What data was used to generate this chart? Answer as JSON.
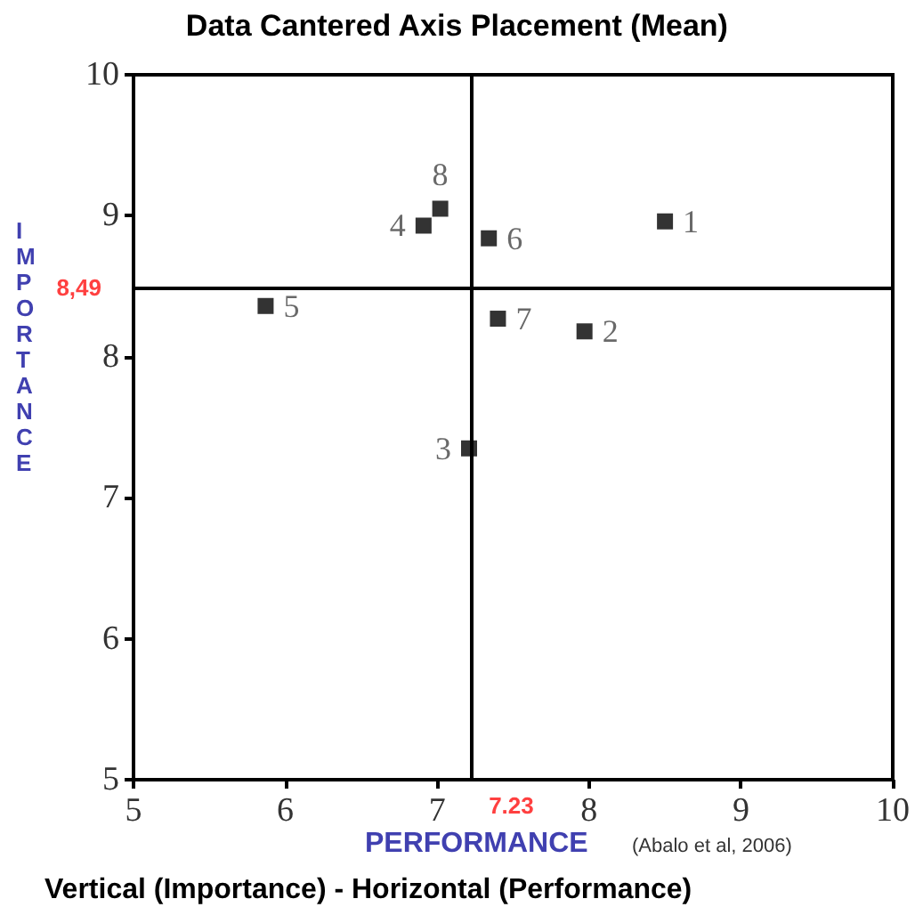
{
  "chart_data": {
    "type": "scatter",
    "title": "Data Cantered Axis Placement (Mean)",
    "xlabel": "PERFORMANCE",
    "ylabel": "IMPORTANCE",
    "x": [
      8.5,
      7.97,
      7.21,
      6.91,
      5.87,
      7.34,
      7.4,
      7.02
    ],
    "values": [
      8.96,
      8.18,
      7.35,
      8.93,
      8.36,
      8.84,
      8.27,
      9.05
    ],
    "color": "#000000",
    "marker": "square",
    "xlim": [
      5,
      10
    ],
    "xticks": [
      5,
      6,
      7,
      8,
      9,
      10
    ],
    "ylim": [
      5,
      10
    ],
    "yticks": [
      5,
      6,
      7,
      8,
      9,
      10
    ],
    "grid": false,
    "ref_lines": [
      {
        "axis": "x",
        "value": 7.23,
        "label": "7.23",
        "color": "#000000"
      },
      {
        "axis": "y",
        "value": 8.49,
        "label": "8,49",
        "color": "#000000"
      }
    ],
    "annotations": [
      {
        "text": "1",
        "x": 8.5,
        "y": 8.96
      },
      {
        "text": "2",
        "x": 7.97,
        "y": 8.18
      },
      {
        "text": "3",
        "x": 7.21,
        "y": 7.35
      },
      {
        "text": "4",
        "x": 6.91,
        "y": 8.93
      },
      {
        "text": "5",
        "x": 5.87,
        "y": 8.36
      },
      {
        "text": "6",
        "x": 7.34,
        "y": 8.84
      },
      {
        "text": "7",
        "x": 7.4,
        "y": 8.27
      },
      {
        "text": "8",
        "x": 7.02,
        "y": 9.05
      },
      "(Abalo et al, 2006)",
      "Vertical (Importance) - Horizontal (Performance)"
    ]
  }
}
